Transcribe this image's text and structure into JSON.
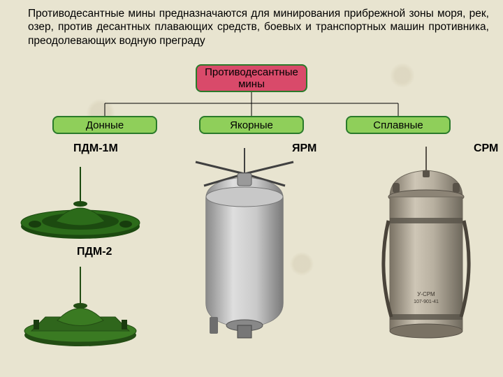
{
  "intro_text": "Противодесантные мины предназначаются для минирования прибрежной зоны моря, рек, озер, против десантных плавающих средств, боевых и транспортных машин противника, преодолевающих водную преграду",
  "tree": {
    "root": {
      "label": "Противодесантные\nмины",
      "fill": "#d94a6a",
      "border": "#2a7a2a",
      "text_color": "#000000"
    },
    "children": [
      {
        "label": "Донные",
        "fill": "#8fcf5a",
        "border": "#2a7a2a"
      },
      {
        "label": "Якорные",
        "fill": "#8fcf5a",
        "border": "#2a7a2a"
      },
      {
        "label": "Сплавные",
        "fill": "#8fcf5a",
        "border": "#2a7a2a"
      }
    ],
    "connector_color": "#000000"
  },
  "labels": {
    "pdm1m": "ПДМ-1М",
    "pdm2": "ПДМ-2",
    "yarm": "ЯРМ",
    "srm": "СРМ"
  },
  "mines": {
    "pdm1m": {
      "body": "#2c6b1a",
      "dark": "#1c4a10",
      "antenna": "#1c4a10"
    },
    "pdm2": {
      "body": "#3a7a22",
      "dark": "#234d14",
      "antenna": "#234d14"
    },
    "yarm": {
      "body": "#b8b8b8",
      "light": "#d8d8d8",
      "dark": "#787878",
      "antenna": "#404040"
    },
    "srm": {
      "body": "#a8a094",
      "light": "#c4bcae",
      "dark": "#6e685c",
      "band": "#585248"
    }
  },
  "page": {
    "background": "#e8e4d0",
    "text_color": "#000000",
    "font_family": "Arial",
    "intro_fontsize": 15.5,
    "label_fontsize": 16
  }
}
